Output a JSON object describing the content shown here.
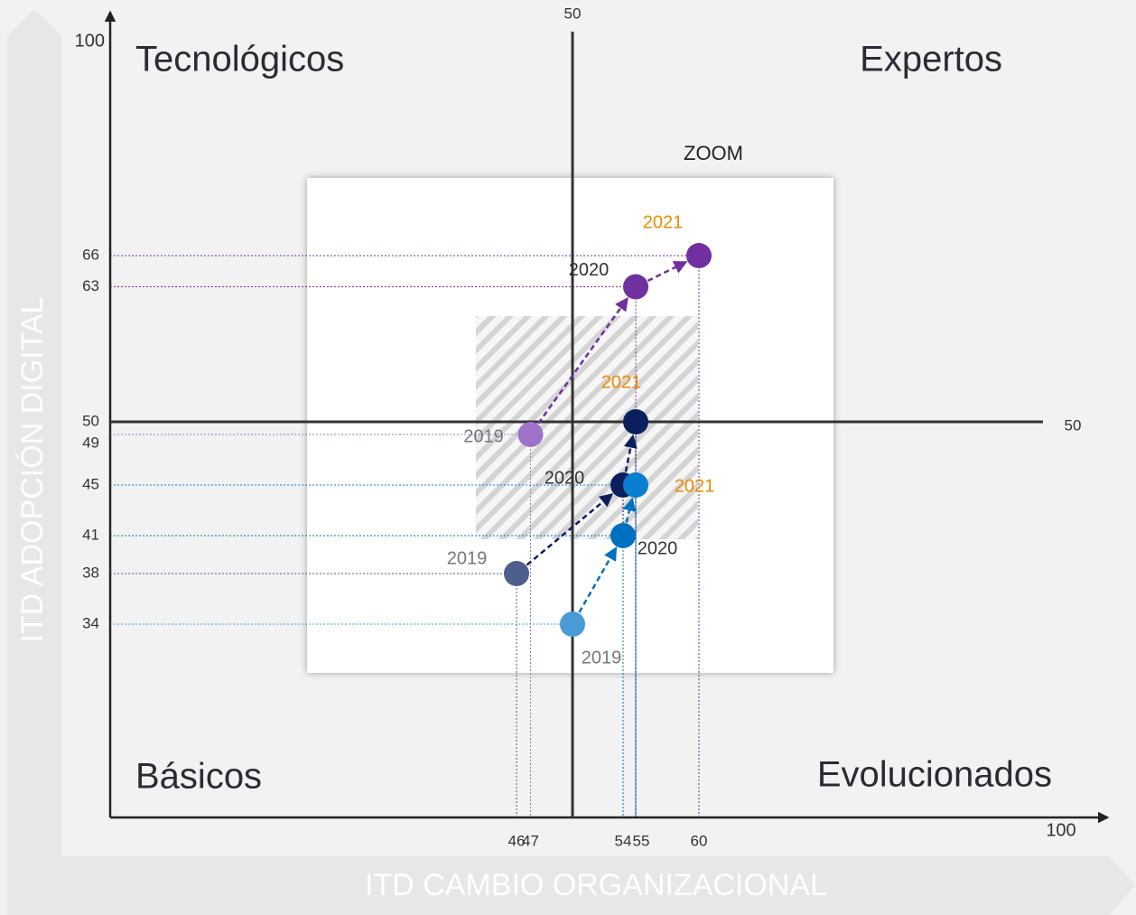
{
  "chart_data": {
    "type": "scatter",
    "x_axis_label": "ITD CAMBIO ORGANIZACIONAL",
    "y_axis_label": "ITD ADOPCIÓN DIGITAL",
    "quadrants": {
      "top_left": "Tecnológicos",
      "top_right": "Expertos",
      "bottom_left": "Básicos",
      "bottom_right": "Evolucionados"
    },
    "zoom_label": "ZOOM",
    "axis_max": 100,
    "axis_mid": 50,
    "xticks": [
      46,
      47,
      54,
      55,
      60
    ],
    "yticks": [
      66,
      63,
      50,
      49,
      45,
      41,
      38,
      34
    ],
    "series": [
      {
        "labels": [
          "2019",
          "2020",
          "2021"
        ],
        "x": [
          47,
          55,
          60
        ],
        "values": [
          49,
          63,
          66
        ],
        "colors": [
          "#9e72c8",
          "#7030a0",
          "#7030a0"
        ],
        "color": "#7030a0"
      },
      {
        "labels": [
          "2019",
          "2020",
          "2021"
        ],
        "x": [
          46,
          54,
          55
        ],
        "values": [
          38,
          45,
          50
        ],
        "colors": [
          "#4e5f8e",
          "#0a1f5c",
          "#0a1f5c"
        ],
        "color": "#0a1f5c"
      },
      {
        "labels": [
          "2019",
          "2020",
          "2021"
        ],
        "x": [
          50,
          54,
          55
        ],
        "values": [
          34,
          41,
          45
        ],
        "colors": [
          "#4a9ad6",
          "#0070c0",
          "#0a7ed0"
        ],
        "color": "#0070c0"
      }
    ]
  }
}
